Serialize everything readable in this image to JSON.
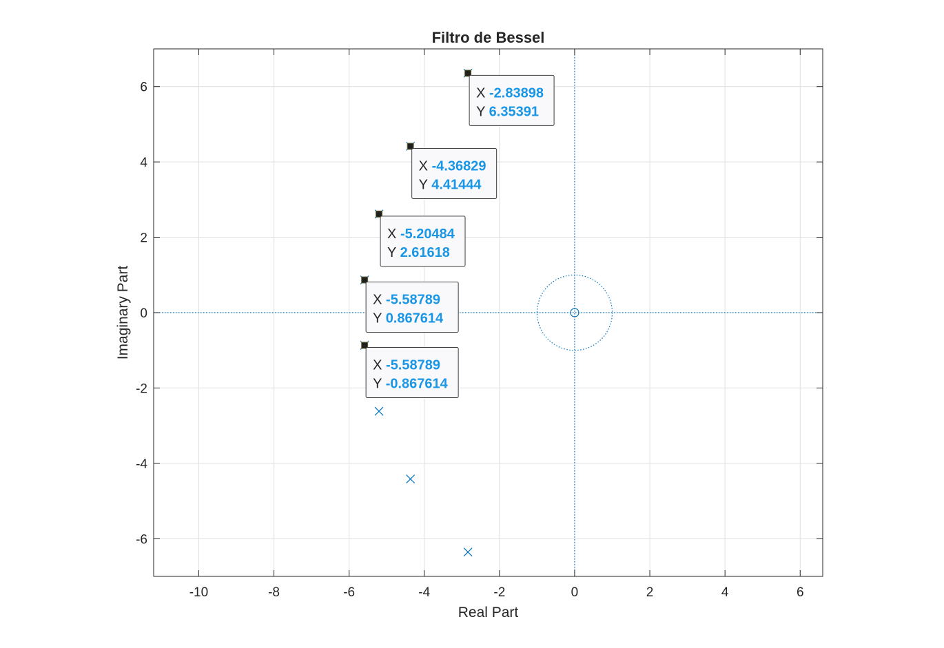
{
  "chart_data": {
    "type": "scatter",
    "title": "Filtro de Bessel",
    "xlabel": "Real Part",
    "ylabel": "Imaginary Part",
    "xlim": [
      -11.2,
      6.6
    ],
    "ylim": [
      -7,
      7
    ],
    "xticks": [
      -10,
      -8,
      -6,
      -4,
      -2,
      0,
      2,
      4,
      6
    ],
    "yticks": [
      -6,
      -4,
      -2,
      0,
      2,
      4,
      6
    ],
    "grid": true,
    "colors": {
      "marker": "#0072bd",
      "datatip_value": "#1a96e6",
      "grid": "#dfdfdf",
      "axis": "#262626"
    },
    "unit_circle": {
      "center": [
        0,
        0
      ],
      "radius": 1
    },
    "zeros": [],
    "poles": [
      {
        "x": -2.83898,
        "y": 6.35391
      },
      {
        "x": -4.36829,
        "y": 4.41444
      },
      {
        "x": -5.20484,
        "y": 2.61618
      },
      {
        "x": -5.58789,
        "y": 0.867614
      },
      {
        "x": -5.58789,
        "y": -0.867614
      },
      {
        "x": -5.20484,
        "y": -2.61618
      },
      {
        "x": -4.36829,
        "y": -4.41444
      },
      {
        "x": -2.83898,
        "y": -6.35391
      }
    ],
    "origin_marker": {
      "x": 0,
      "y": 0,
      "symbol": "o"
    },
    "datatips": [
      {
        "x_label": "X",
        "x_value": "-2.83898",
        "y_label": "Y",
        "y_value": "6.35391",
        "x": -2.83898,
        "y": 6.35391
      },
      {
        "x_label": "X",
        "x_value": "-4.36829",
        "y_label": "Y",
        "y_value": "4.41444",
        "x": -4.36829,
        "y": 4.41444
      },
      {
        "x_label": "X",
        "x_value": "-5.20484",
        "y_label": "Y",
        "y_value": "2.61618",
        "x": -5.20484,
        "y": 2.61618
      },
      {
        "x_label": "X",
        "x_value": "-5.58789",
        "y_label": "Y",
        "y_value": "0.867614",
        "x": -5.58789,
        "y": 0.867614
      },
      {
        "x_label": "X",
        "x_value": "-5.58789",
        "y_label": "Y",
        "y_value": "-0.867614",
        "x": -5.58789,
        "y": -0.867614
      }
    ]
  }
}
